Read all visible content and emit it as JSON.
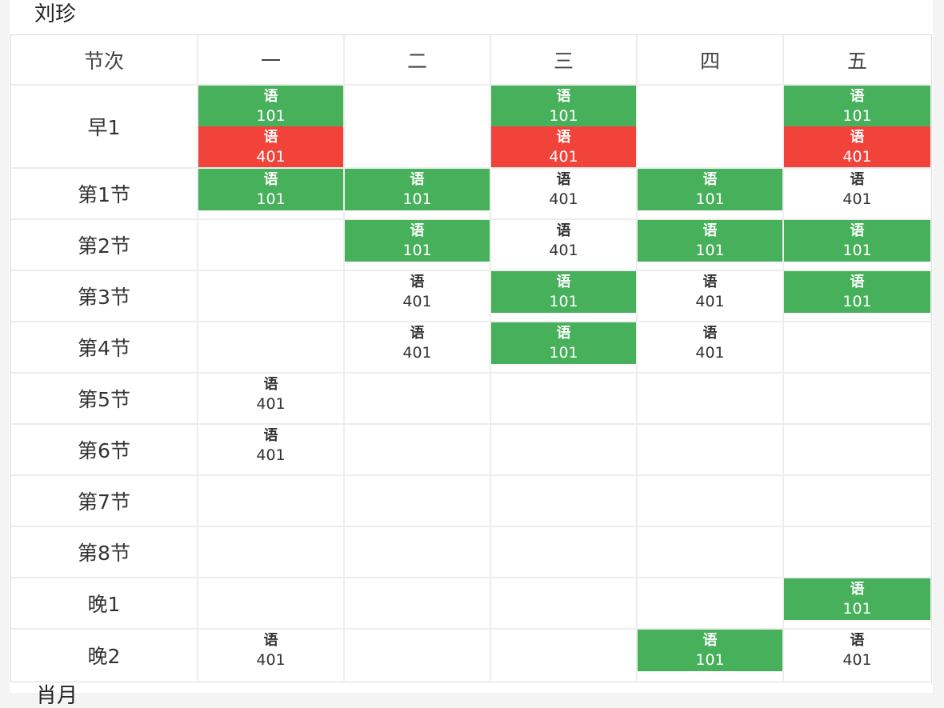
{
  "teacher": {
    "name": "刘珍"
  },
  "next_teacher": {
    "name": "肖月"
  },
  "colors": {
    "green": "#47b05a",
    "red": "#f2433b"
  },
  "header": [
    "节次",
    "一",
    "二",
    "三",
    "四",
    "五"
  ],
  "rows": [
    {
      "label": "早1",
      "cells": [
        [
          {
            "subject": "语",
            "room": "101",
            "color": "green"
          },
          {
            "subject": "语",
            "room": "401",
            "color": "red"
          }
        ],
        [],
        [
          {
            "subject": "语",
            "room": "101",
            "color": "green"
          },
          {
            "subject": "语",
            "room": "401",
            "color": "red"
          }
        ],
        [],
        [
          {
            "subject": "语",
            "room": "101",
            "color": "green"
          },
          {
            "subject": "语",
            "room": "401",
            "color": "red"
          }
        ]
      ]
    },
    {
      "label": "第1节",
      "cells": [
        [
          {
            "subject": "语",
            "room": "101",
            "color": "green"
          }
        ],
        [
          {
            "subject": "语",
            "room": "101",
            "color": "green"
          }
        ],
        [
          {
            "subject": "语",
            "room": "401",
            "color": "none"
          }
        ],
        [
          {
            "subject": "语",
            "room": "101",
            "color": "green"
          }
        ],
        [
          {
            "subject": "语",
            "room": "401",
            "color": "none"
          }
        ]
      ]
    },
    {
      "label": "第2节",
      "cells": [
        [],
        [
          {
            "subject": "语",
            "room": "101",
            "color": "green"
          }
        ],
        [
          {
            "subject": "语",
            "room": "401",
            "color": "none"
          }
        ],
        [
          {
            "subject": "语",
            "room": "101",
            "color": "green"
          }
        ],
        [
          {
            "subject": "语",
            "room": "101",
            "color": "green"
          }
        ]
      ]
    },
    {
      "label": "第3节",
      "cells": [
        [],
        [
          {
            "subject": "语",
            "room": "401",
            "color": "none"
          }
        ],
        [
          {
            "subject": "语",
            "room": "101",
            "color": "green"
          }
        ],
        [
          {
            "subject": "语",
            "room": "401",
            "color": "none"
          }
        ],
        [
          {
            "subject": "语",
            "room": "101",
            "color": "green"
          }
        ]
      ]
    },
    {
      "label": "第4节",
      "cells": [
        [],
        [
          {
            "subject": "语",
            "room": "401",
            "color": "none"
          }
        ],
        [
          {
            "subject": "语",
            "room": "101",
            "color": "green"
          }
        ],
        [
          {
            "subject": "语",
            "room": "401",
            "color": "none"
          }
        ],
        []
      ]
    },
    {
      "label": "第5节",
      "cells": [
        [
          {
            "subject": "语",
            "room": "401",
            "color": "none"
          }
        ],
        [],
        [],
        [],
        []
      ]
    },
    {
      "label": "第6节",
      "cells": [
        [
          {
            "subject": "语",
            "room": "401",
            "color": "none"
          }
        ],
        [],
        [],
        [],
        []
      ]
    },
    {
      "label": "第7节",
      "cells": [
        [],
        [],
        [],
        [],
        []
      ]
    },
    {
      "label": "第8节",
      "cells": [
        [],
        [],
        [],
        [],
        []
      ]
    },
    {
      "label": "晚1",
      "cells": [
        [],
        [],
        [],
        [],
        [
          {
            "subject": "语",
            "room": "101",
            "color": "green"
          }
        ]
      ]
    },
    {
      "label": "晚2",
      "cells": [
        [
          {
            "subject": "语",
            "room": "401",
            "color": "none"
          }
        ],
        [],
        [],
        [
          {
            "subject": "语",
            "room": "101",
            "color": "green"
          }
        ],
        [
          {
            "subject": "语",
            "room": "401",
            "color": "none"
          }
        ]
      ]
    }
  ]
}
